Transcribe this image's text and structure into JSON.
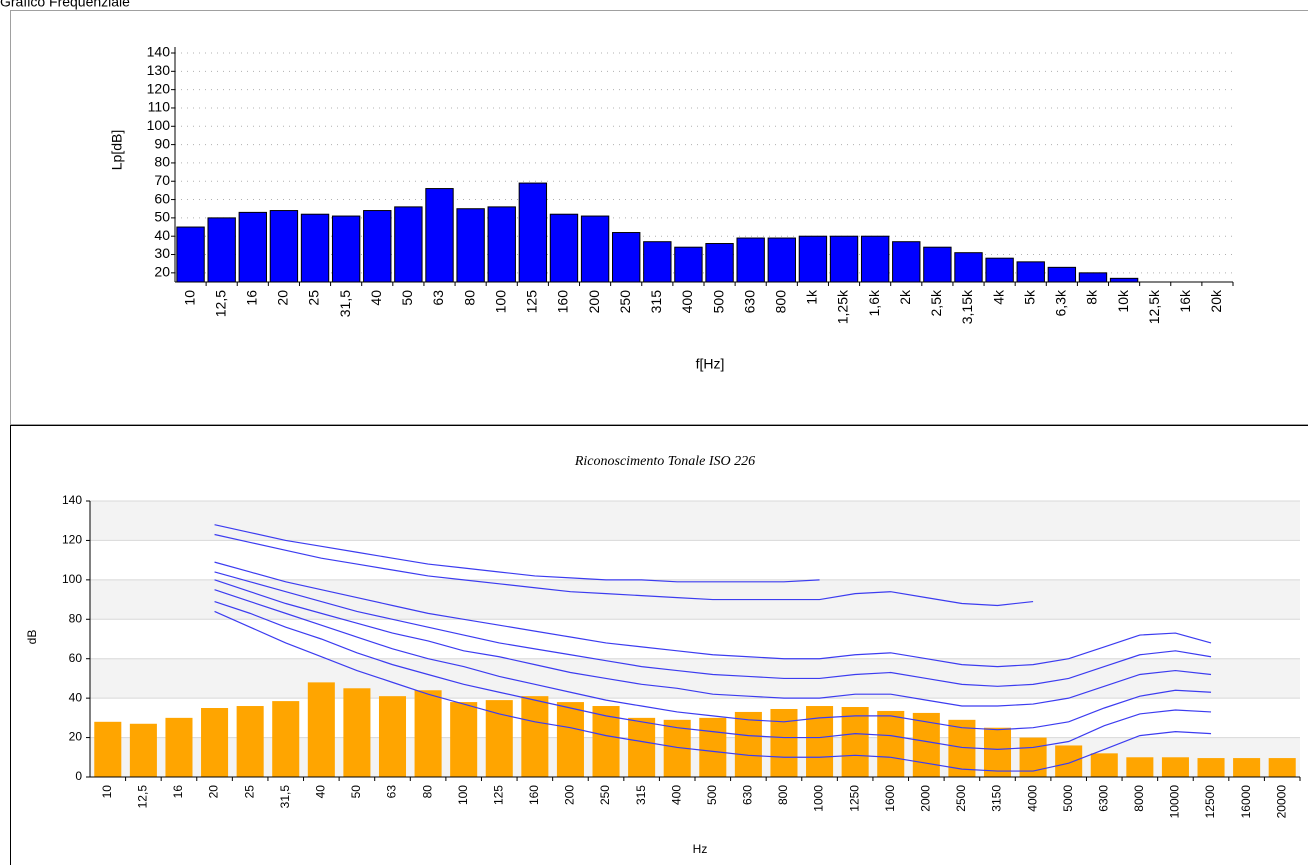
{
  "group_title": "Grafico Frequenziale",
  "chart_data": [
    {
      "type": "bar",
      "y_label": "Lp[dB]",
      "x_label": "f[Hz]",
      "categories": [
        "10",
        "12,5",
        "16",
        "20",
        "25",
        "31,5",
        "40",
        "50",
        "63",
        "80",
        "100",
        "125",
        "160",
        "200",
        "250",
        "315",
        "400",
        "500",
        "630",
        "800",
        "1k",
        "1,25k",
        "1,6k",
        "2k",
        "2,5k",
        "3,15k",
        "4k",
        "5k",
        "6,3k",
        "8k",
        "10k",
        "12,5k",
        "16k",
        "20k"
      ],
      "values": [
        45,
        50,
        53,
        54,
        52,
        51,
        54,
        56,
        66,
        55,
        56,
        69,
        52,
        51,
        42,
        37,
        34,
        36,
        39,
        39,
        40,
        40,
        40,
        37,
        34,
        31,
        28,
        26,
        23,
        20,
        17,
        null,
        null,
        null
      ],
      "color": "#0000ff",
      "ylim": [
        15,
        140
      ],
      "yticks": [
        20,
        30,
        40,
        50,
        60,
        70,
        80,
        90,
        100,
        110,
        120,
        130,
        140
      ],
      "grid": true
    },
    {
      "type": "bar",
      "title": "Riconoscimento Tonale ISO 226",
      "y_label": "dB",
      "x_label": "Hz",
      "categories": [
        "10",
        "12,5",
        "16",
        "20",
        "25",
        "31,5",
        "40",
        "50",
        "63",
        "80",
        "100",
        "125",
        "160",
        "200",
        "250",
        "315",
        "400",
        "500",
        "630",
        "800",
        "1000",
        "1250",
        "1600",
        "2000",
        "2500",
        "3150",
        "4000",
        "5000",
        "6300",
        "8000",
        "10000",
        "12500",
        "16000",
        "20000"
      ],
      "values": [
        28,
        27,
        30,
        35,
        36,
        38.5,
        48,
        45,
        41,
        44,
        38,
        39,
        41,
        38,
        36,
        30,
        29,
        30,
        33,
        34.5,
        36,
        35.5,
        33.5,
        32.5,
        29,
        25,
        20,
        16,
        12,
        10,
        10,
        9.6,
        9.6,
        9.6
      ],
      "color": "#ffa500",
      "series": [
        {
          "color": "#3c3cf0",
          "values": [
            null,
            null,
            null,
            84,
            76,
            68,
            61,
            54,
            48,
            42,
            37,
            32,
            28,
            25,
            21,
            18,
            15,
            13,
            11,
            10,
            10,
            11,
            10,
            7,
            4,
            3,
            3,
            7,
            14,
            21,
            23,
            22,
            null,
            null
          ]
        },
        {
          "color": "#3c3cf0",
          "values": [
            null,
            null,
            null,
            89,
            83,
            76,
            70,
            63,
            57,
            52,
            47,
            43,
            39,
            35,
            31,
            28,
            25,
            23,
            21,
            20,
            20,
            22,
            21,
            18,
            15,
            14,
            15,
            18,
            26,
            32,
            34,
            33,
            null,
            null
          ]
        },
        {
          "color": "#3c3cf0",
          "values": [
            null,
            null,
            null,
            95,
            89,
            83,
            77,
            71,
            65,
            60,
            56,
            51,
            47,
            43,
            39,
            36,
            33,
            31,
            29,
            28,
            30,
            31,
            31,
            28,
            25,
            24,
            25,
            28,
            35,
            41,
            44,
            43,
            null,
            null
          ]
        },
        {
          "color": "#3c3cf0",
          "values": [
            null,
            null,
            null,
            100,
            94,
            88,
            83,
            78,
            73,
            69,
            64,
            61,
            57,
            53,
            50,
            47,
            45,
            42,
            41,
            40,
            40,
            42,
            42,
            39,
            36,
            36,
            37,
            40,
            46,
            52,
            54,
            52,
            null,
            null
          ]
        },
        {
          "color": "#3c3cf0",
          "values": [
            null,
            null,
            null,
            104,
            99,
            94,
            89,
            84,
            80,
            76,
            72,
            68,
            65,
            62,
            59,
            56,
            54,
            52,
            51,
            50,
            50,
            52,
            53,
            50,
            47,
            46,
            47,
            50,
            56,
            62,
            64,
            61,
            null,
            null
          ]
        },
        {
          "color": "#3c3cf0",
          "values": [
            null,
            null,
            null,
            109,
            104,
            99,
            95,
            91,
            87,
            83,
            80,
            77,
            74,
            71,
            68,
            66,
            64,
            62,
            61,
            60,
            60,
            62,
            63,
            60,
            57,
            56,
            57,
            60,
            66,
            72,
            73,
            68,
            null,
            null
          ]
        },
        {
          "color": "#3c3cf0",
          "values": [
            null,
            null,
            null,
            123,
            119,
            115,
            111,
            108,
            105,
            102,
            100,
            98,
            96,
            94,
            93,
            92,
            91,
            90,
            90,
            90,
            90,
            93,
            94,
            91,
            88,
            87,
            89,
            null,
            null,
            null,
            null,
            null,
            null,
            null
          ]
        },
        {
          "color": "#3c3cf0",
          "values": [
            null,
            null,
            null,
            128,
            124,
            120,
            117,
            114,
            111,
            108,
            106,
            104,
            102,
            101,
            100,
            100,
            99,
            99,
            99,
            99,
            100,
            null,
            null,
            null,
            null,
            null,
            null,
            null,
            null,
            null,
            null,
            null,
            null,
            null
          ]
        }
      ],
      "ylim": [
        0,
        140
      ],
      "yticks": [
        0,
        20,
        40,
        60,
        80,
        100,
        120,
        140
      ],
      "grid": true
    }
  ]
}
